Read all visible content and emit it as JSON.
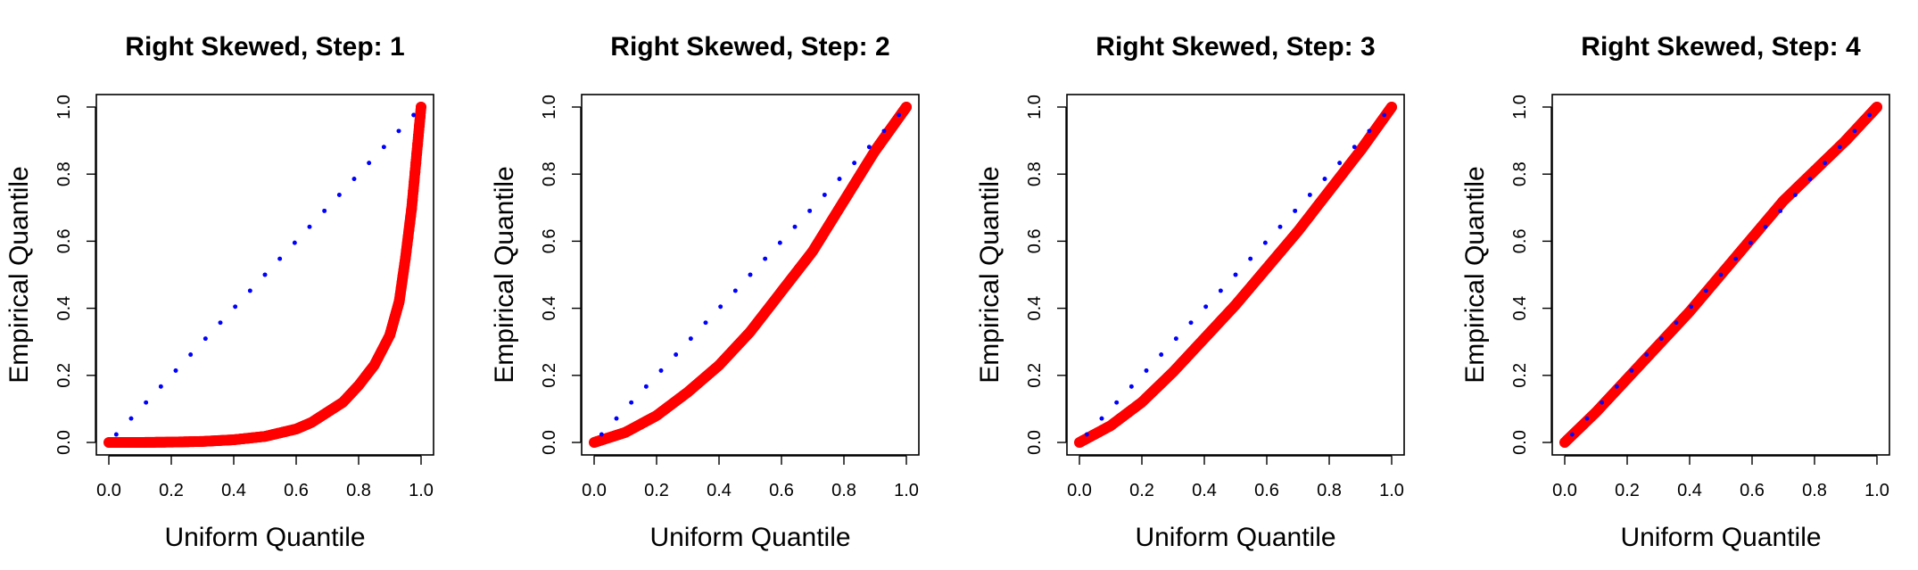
{
  "chart_data": [
    {
      "type": "scatter",
      "title": "Right Skewed, Step: 1",
      "xlabel": "Uniform Quantile",
      "ylabel": "Empirical Quantile",
      "xlim": [
        0,
        1
      ],
      "ylim": [
        0,
        1
      ],
      "xticks": [
        "0.0",
        "0.2",
        "0.4",
        "0.6",
        "0.8",
        "1.0"
      ],
      "yticks": [
        "0.0",
        "0.2",
        "0.4",
        "0.6",
        "0.8",
        "1.0"
      ],
      "reference_line": {
        "color": "#0000ff",
        "style": "dotted",
        "from": [
          0,
          0
        ],
        "to": [
          1,
          1
        ]
      },
      "series": [
        {
          "color": "#ff0000",
          "points": [
            [
              0.0,
              0.0
            ],
            [
              0.1,
              0.0
            ],
            [
              0.2,
              0.001
            ],
            [
              0.3,
              0.003
            ],
            [
              0.4,
              0.008
            ],
            [
              0.5,
              0.018
            ],
            [
              0.6,
              0.04
            ],
            [
              0.65,
              0.06
            ],
            [
              0.7,
              0.09
            ],
            [
              0.75,
              0.12
            ],
            [
              0.8,
              0.17
            ],
            [
              0.85,
              0.23
            ],
            [
              0.9,
              0.32
            ],
            [
              0.93,
              0.42
            ],
            [
              0.95,
              0.55
            ],
            [
              0.97,
              0.7
            ],
            [
              0.98,
              0.8
            ],
            [
              0.99,
              0.9
            ],
            [
              1.0,
              1.0
            ]
          ]
        }
      ]
    },
    {
      "type": "scatter",
      "title": "Right Skewed, Step: 2",
      "xlabel": "Uniform Quantile",
      "ylabel": "Empirical Quantile",
      "xlim": [
        0,
        1
      ],
      "ylim": [
        0,
        1
      ],
      "xticks": [
        "0.0",
        "0.2",
        "0.4",
        "0.6",
        "0.8",
        "1.0"
      ],
      "yticks": [
        "0.0",
        "0.2",
        "0.4",
        "0.6",
        "0.8",
        "1.0"
      ],
      "reference_line": {
        "color": "#0000ff",
        "style": "dotted",
        "from": [
          0,
          0
        ],
        "to": [
          1,
          1
        ]
      },
      "series": [
        {
          "color": "#ff0000",
          "points": [
            [
              0.0,
              0.0
            ],
            [
              0.1,
              0.03
            ],
            [
              0.2,
              0.08
            ],
            [
              0.3,
              0.15
            ],
            [
              0.4,
              0.23
            ],
            [
              0.5,
              0.33
            ],
            [
              0.6,
              0.45
            ],
            [
              0.7,
              0.57
            ],
            [
              0.8,
              0.72
            ],
            [
              0.9,
              0.87
            ],
            [
              1.0,
              1.0
            ]
          ]
        }
      ]
    },
    {
      "type": "scatter",
      "title": "Right Skewed, Step: 3",
      "xlabel": "Uniform Quantile",
      "ylabel": "Empirical Quantile",
      "xlim": [
        0,
        1
      ],
      "ylim": [
        0,
        1
      ],
      "xticks": [
        "0.0",
        "0.2",
        "0.4",
        "0.6",
        "0.8",
        "1.0"
      ],
      "yticks": [
        "0.0",
        "0.2",
        "0.4",
        "0.6",
        "0.8",
        "1.0"
      ],
      "reference_line": {
        "color": "#0000ff",
        "style": "dotted",
        "from": [
          0,
          0
        ],
        "to": [
          1,
          1
        ]
      },
      "series": [
        {
          "color": "#ff0000",
          "points": [
            [
              0.0,
              0.0
            ],
            [
              0.1,
              0.05
            ],
            [
              0.2,
              0.12
            ],
            [
              0.3,
              0.21
            ],
            [
              0.4,
              0.31
            ],
            [
              0.5,
              0.41
            ],
            [
              0.6,
              0.52
            ],
            [
              0.7,
              0.63
            ],
            [
              0.8,
              0.75
            ],
            [
              0.9,
              0.87
            ],
            [
              1.0,
              1.0
            ]
          ]
        }
      ]
    },
    {
      "type": "scatter",
      "title": "Right Skewed, Step: 4",
      "xlabel": "Uniform Quantile",
      "ylabel": "Empirical Quantile",
      "xlim": [
        0,
        1
      ],
      "ylim": [
        0,
        1
      ],
      "xticks": [
        "0.0",
        "0.2",
        "0.4",
        "0.6",
        "0.8",
        "1.0"
      ],
      "yticks": [
        "0.0",
        "0.2",
        "0.4",
        "0.6",
        "0.8",
        "1.0"
      ],
      "reference_line": {
        "color": "#0000ff",
        "style": "dotted",
        "from": [
          0,
          0
        ],
        "to": [
          1,
          1
        ]
      },
      "series": [
        {
          "color": "#ff0000",
          "points": [
            [
              0.0,
              0.0
            ],
            [
              0.1,
              0.09
            ],
            [
              0.2,
              0.19
            ],
            [
              0.3,
              0.29
            ],
            [
              0.4,
              0.39
            ],
            [
              0.5,
              0.5
            ],
            [
              0.6,
              0.61
            ],
            [
              0.7,
              0.72
            ],
            [
              0.8,
              0.81
            ],
            [
              0.9,
              0.9
            ],
            [
              1.0,
              1.0
            ]
          ]
        }
      ]
    }
  ]
}
